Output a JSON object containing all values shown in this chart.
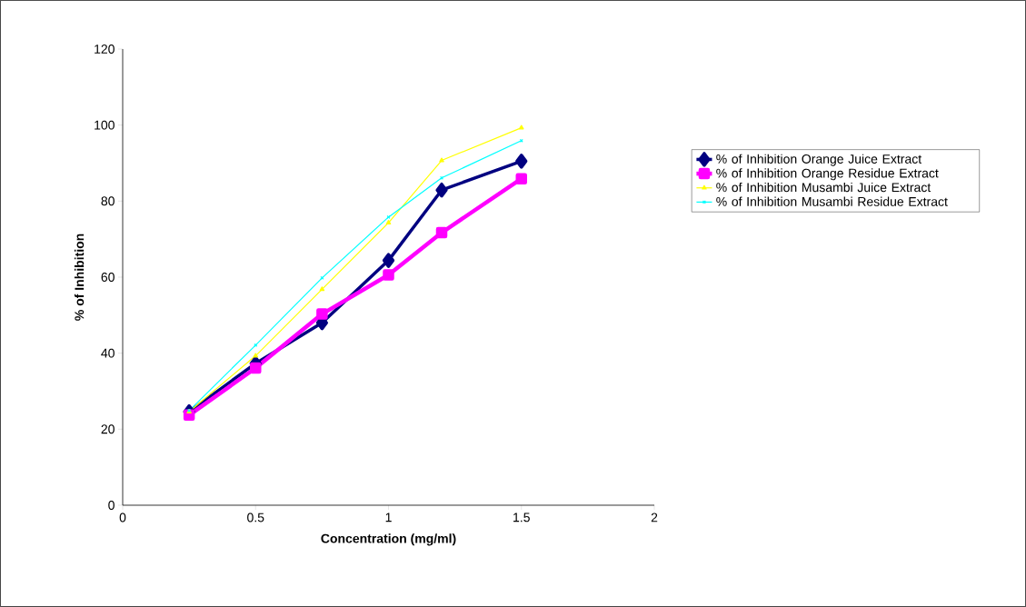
{
  "chart_data": {
    "type": "line",
    "xlabel": "Concentration (mg/ml)",
    "ylabel": "% of Inhibition",
    "x": [
      0.25,
      0.5,
      0.75,
      1,
      1.2,
      1.5
    ],
    "series": [
      {
        "name": "% of Inhibition Orange Juice Extract",
        "color": "#000080",
        "marker": "diamond",
        "values": [
          24.6,
          37.3,
          48.0,
          64.4,
          82.9,
          90.5
        ]
      },
      {
        "name": "% of Inhibition Orange Residue Extract",
        "color": "#ff00ff",
        "marker": "square",
        "values": [
          23.7,
          36.1,
          50.3,
          60.6,
          71.7,
          85.9
        ]
      },
      {
        "name": "% of Inhibition Musambi Juice Extract",
        "color": "#ffff00",
        "marker": "triangle",
        "values": [
          24.6,
          39.3,
          56.8,
          74.3,
          90.7,
          99.3
        ]
      },
      {
        "name": "% of Inhibition Musambi Residue Extract",
        "color": "#00ffff",
        "marker": "cross",
        "values": [
          24.9,
          42.1,
          59.8,
          75.8,
          86.1,
          95.9
        ]
      }
    ],
    "xlim": [
      0,
      2
    ],
    "xticks": [
      0,
      0.5,
      1,
      1.5,
      2
    ],
    "ylim": [
      0,
      120
    ],
    "yticks": [
      0,
      20,
      40,
      60,
      80,
      100,
      120
    ],
    "grid": false,
    "legend": "right",
    "line_style": "solid"
  }
}
